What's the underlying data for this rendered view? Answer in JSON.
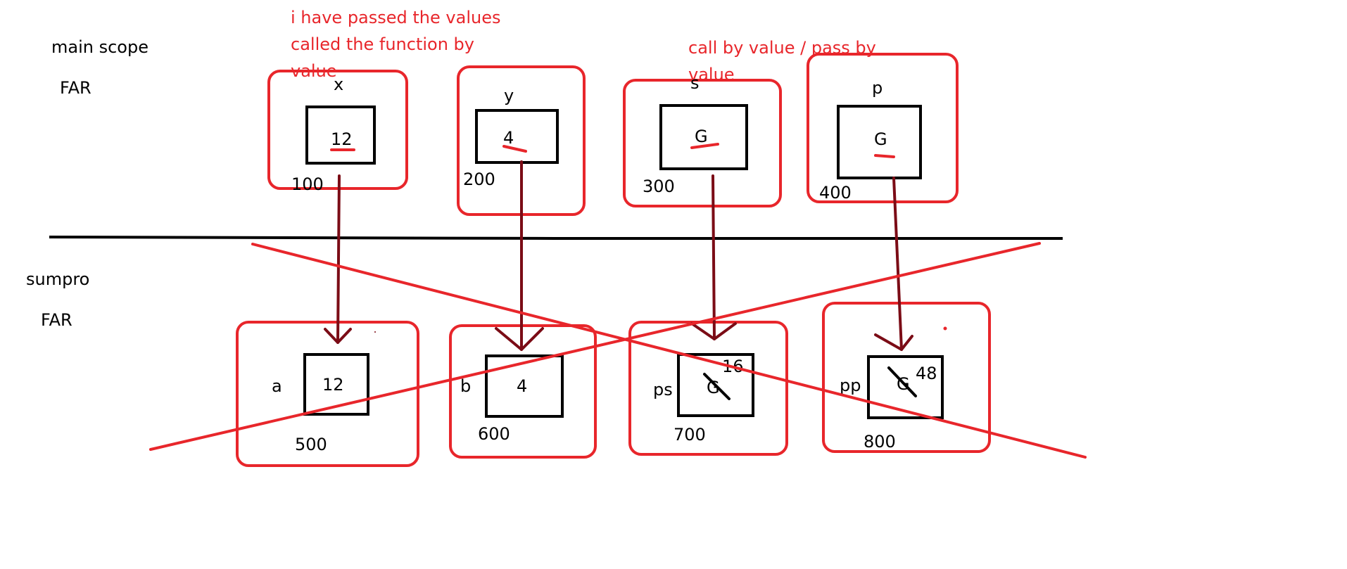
{
  "colors": {
    "ink": "#000000",
    "annotation": "#e8262b",
    "arrow": "#7b0c16",
    "background": "#ffffff"
  },
  "scopes": {
    "top": {
      "name": "main scope",
      "record": "FAR"
    },
    "bottom": {
      "name": "sumpro",
      "record": "FAR"
    }
  },
  "notes": {
    "passed_values": [
      "i have passed the values",
      "called the function by",
      "value"
    ],
    "call_by_value": [
      "call by value / pass by",
      "value"
    ]
  },
  "main_vars": [
    {
      "name": "x",
      "value": "12",
      "address": "100"
    },
    {
      "name": "y",
      "value": "4",
      "address": "200"
    },
    {
      "name": "s",
      "value": "G",
      "address": "300"
    },
    {
      "name": "p",
      "value": "G",
      "address": "400"
    }
  ],
  "sumpro_vars": [
    {
      "name": "a",
      "value": "12",
      "address": "500"
    },
    {
      "name": "b",
      "value": "4",
      "address": "600"
    },
    {
      "name": "ps",
      "value": "G",
      "new_value": "16",
      "crossed_out": true,
      "address": "700"
    },
    {
      "name": "pp",
      "value": "G",
      "new_value": "48",
      "crossed_out": true,
      "address": "800"
    }
  ]
}
